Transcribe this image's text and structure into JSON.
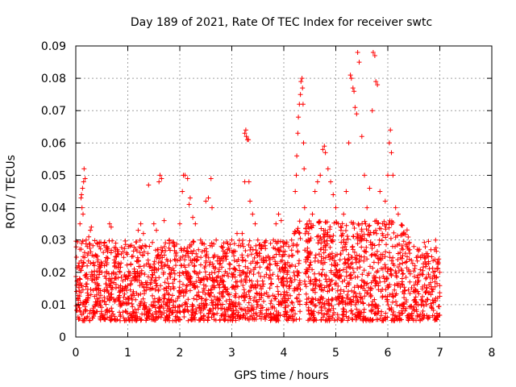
{
  "chart_data": {
    "type": "scatter",
    "title": "Day 189 of 2021, Rate Of TEC Index for receiver swtc",
    "xlabel": "GPS time / hours",
    "ylabel": "ROTI / TECUs",
    "xlim": [
      0,
      8
    ],
    "ylim": [
      0,
      0.09
    ],
    "x_ticks": [
      0,
      1,
      2,
      3,
      4,
      5,
      6,
      7,
      8
    ],
    "x_tick_labels": [
      "0",
      "1",
      "2",
      "3",
      "4",
      "5",
      "6",
      "7",
      "8"
    ],
    "y_ticks": [
      0,
      0.01,
      0.02,
      0.03,
      0.04,
      0.05,
      0.06,
      0.07,
      0.08,
      0.09
    ],
    "y_tick_labels": [
      "0",
      "0.01",
      "0.02",
      "0.03",
      "0.04",
      "0.05",
      "0.06",
      "0.07",
      "0.08",
      "0.09"
    ],
    "grid": true,
    "marker": "+",
    "color": "#ff0000",
    "data_note_dense_band": "Dense cloud of points roughly 0.005–0.03 from x=0 to x≈7.0, gap near x≈4.35–4.4",
    "points": [
      [
        0.02,
        0.016
      ],
      [
        0.04,
        0.012
      ],
      [
        0.05,
        0.022
      ],
      [
        0.07,
        0.009
      ],
      [
        0.08,
        0.035
      ],
      [
        0.1,
        0.043
      ],
      [
        0.11,
        0.044
      ],
      [
        0.12,
        0.04
      ],
      [
        0.13,
        0.046
      ],
      [
        0.15,
        0.048
      ],
      [
        0.16,
        0.052
      ],
      [
        0.18,
        0.049
      ],
      [
        0.14,
        0.038
      ],
      [
        0.2,
        0.03
      ],
      [
        0.22,
        0.028
      ],
      [
        0.25,
        0.031
      ],
      [
        0.28,
        0.033
      ],
      [
        0.3,
        0.034
      ],
      [
        0.35,
        0.025
      ],
      [
        0.4,
        0.015
      ],
      [
        0.45,
        0.012
      ],
      [
        0.5,
        0.02
      ],
      [
        0.6,
        0.028
      ],
      [
        0.65,
        0.035
      ],
      [
        0.68,
        0.034
      ],
      [
        0.75,
        0.022
      ],
      [
        0.8,
        0.027
      ],
      [
        0.85,
        0.02
      ],
      [
        0.9,
        0.015
      ],
      [
        1.0,
        0.018
      ],
      [
        1.1,
        0.025
      ],
      [
        1.2,
        0.033
      ],
      [
        1.25,
        0.035
      ],
      [
        1.3,
        0.032
      ],
      [
        1.35,
        0.028
      ],
      [
        1.4,
        0.047
      ],
      [
        1.5,
        0.035
      ],
      [
        1.55,
        0.033
      ],
      [
        1.6,
        0.048
      ],
      [
        1.62,
        0.05
      ],
      [
        1.65,
        0.049
      ],
      [
        1.7,
        0.036
      ],
      [
        1.8,
        0.03
      ],
      [
        1.9,
        0.028
      ],
      [
        2.0,
        0.035
      ],
      [
        2.05,
        0.045
      ],
      [
        2.07,
        0.05
      ],
      [
        2.1,
        0.05
      ],
      [
        2.15,
        0.049
      ],
      [
        2.18,
        0.041
      ],
      [
        2.2,
        0.043
      ],
      [
        2.25,
        0.037
      ],
      [
        2.3,
        0.035
      ],
      [
        2.4,
        0.03
      ],
      [
        2.5,
        0.042
      ],
      [
        2.55,
        0.043
      ],
      [
        2.6,
        0.049
      ],
      [
        2.62,
        0.04
      ],
      [
        2.7,
        0.03
      ],
      [
        2.8,
        0.028
      ],
      [
        2.9,
        0.025
      ],
      [
        3.0,
        0.03
      ],
      [
        3.1,
        0.032
      ],
      [
        3.2,
        0.032
      ],
      [
        3.25,
        0.048
      ],
      [
        3.25,
        0.063
      ],
      [
        3.27,
        0.064
      ],
      [
        3.28,
        0.062
      ],
      [
        3.3,
        0.061
      ],
      [
        3.32,
        0.061
      ],
      [
        3.33,
        0.048
      ],
      [
        3.35,
        0.042
      ],
      [
        3.4,
        0.038
      ],
      [
        3.45,
        0.035
      ],
      [
        3.5,
        0.03
      ],
      [
        3.6,
        0.028
      ],
      [
        3.7,
        0.025
      ],
      [
        3.8,
        0.03
      ],
      [
        3.85,
        0.035
      ],
      [
        3.9,
        0.038
      ],
      [
        3.95,
        0.036
      ],
      [
        4.0,
        0.02
      ],
      [
        4.05,
        0.018
      ],
      [
        4.1,
        0.025
      ],
      [
        4.15,
        0.03
      ],
      [
        4.2,
        0.032
      ],
      [
        4.22,
        0.045
      ],
      [
        4.24,
        0.05
      ],
      [
        4.25,
        0.056
      ],
      [
        4.27,
        0.063
      ],
      [
        4.28,
        0.068
      ],
      [
        4.3,
        0.072
      ],
      [
        4.32,
        0.075
      ],
      [
        4.33,
        0.079
      ],
      [
        4.35,
        0.08
      ],
      [
        4.36,
        0.077
      ],
      [
        4.37,
        0.072
      ],
      [
        4.38,
        0.06
      ],
      [
        4.39,
        0.052
      ],
      [
        4.4,
        0.04
      ],
      [
        4.45,
        0.035
      ],
      [
        4.5,
        0.03
      ],
      [
        4.55,
        0.038
      ],
      [
        4.6,
        0.045
      ],
      [
        4.65,
        0.048
      ],
      [
        4.7,
        0.05
      ],
      [
        4.75,
        0.058
      ],
      [
        4.78,
        0.059
      ],
      [
        4.8,
        0.057
      ],
      [
        4.85,
        0.052
      ],
      [
        4.9,
        0.048
      ],
      [
        4.95,
        0.044
      ],
      [
        5.0,
        0.04
      ],
      [
        5.05,
        0.035
      ],
      [
        5.1,
        0.033
      ],
      [
        5.15,
        0.038
      ],
      [
        5.2,
        0.045
      ],
      [
        5.25,
        0.06
      ],
      [
        5.28,
        0.081
      ],
      [
        5.3,
        0.08
      ],
      [
        5.33,
        0.077
      ],
      [
        5.35,
        0.076
      ],
      [
        5.37,
        0.071
      ],
      [
        5.4,
        0.069
      ],
      [
        5.42,
        0.088
      ],
      [
        5.45,
        0.085
      ],
      [
        5.5,
        0.062
      ],
      [
        5.55,
        0.05
      ],
      [
        5.6,
        0.04
      ],
      [
        5.65,
        0.046
      ],
      [
        5.7,
        0.07
      ],
      [
        5.72,
        0.088
      ],
      [
        5.75,
        0.087
      ],
      [
        5.77,
        0.079
      ],
      [
        5.8,
        0.078
      ],
      [
        5.85,
        0.045
      ],
      [
        5.9,
        0.035
      ],
      [
        5.95,
        0.042
      ],
      [
        6.0,
        0.05
      ],
      [
        6.03,
        0.06
      ],
      [
        6.05,
        0.064
      ],
      [
        6.07,
        0.057
      ],
      [
        6.1,
        0.05
      ],
      [
        6.15,
        0.04
      ],
      [
        6.2,
        0.038
      ],
      [
        6.3,
        0.032
      ],
      [
        6.5,
        0.028
      ],
      [
        6.7,
        0.025
      ],
      [
        6.9,
        0.027
      ],
      [
        7.0,
        0.02
      ]
    ]
  }
}
